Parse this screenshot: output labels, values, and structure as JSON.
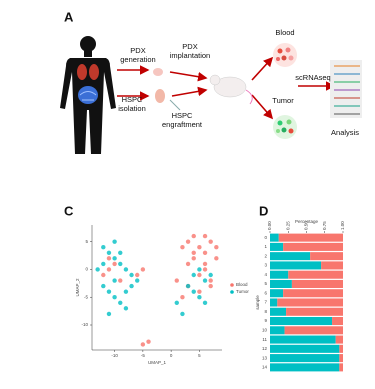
{
  "panel_a": {
    "label": "A",
    "steps": {
      "pdx_generation": [
        "PDX",
        "generation"
      ],
      "pdx_implantation": [
        "PDX",
        "implantation"
      ],
      "hspc_isolation": [
        "HSPC",
        "isolation"
      ],
      "hspc_engraftment": [
        "HSPC",
        "engraftment"
      ],
      "blood": "Blood",
      "tumor": "Tumor",
      "scrnaseq": "scRNAseq",
      "analysis": "Analysis"
    }
  },
  "chart_data": [
    {
      "panel": "C",
      "type": "scatter",
      "xlabel": "UMAP_1",
      "ylabel": "UMAP_2",
      "xlim": [
        -14,
        9
      ],
      "ylim": [
        -14.5,
        8
      ],
      "xticks": [
        -10,
        -5,
        0,
        5
      ],
      "yticks": [
        -10,
        -5,
        0,
        5
      ],
      "legend": "right",
      "series": [
        {
          "name": "Blood",
          "color": "#f8766d",
          "x": [
            3,
            4,
            5,
            6,
            7,
            8,
            5,
            6,
            7,
            4,
            3,
            2,
            6,
            8,
            1,
            -11,
            -12,
            -10,
            -9,
            -11,
            -6,
            -5,
            -4,
            -5,
            6,
            5,
            7,
            4,
            2,
            3
          ],
          "y": [
            5,
            6,
            4,
            3,
            5,
            2,
            -1,
            0,
            -2,
            2,
            -3,
            -5,
            6,
            4,
            -2,
            0,
            -1,
            1,
            -2,
            2,
            -1,
            0,
            -13,
            -13.5,
            1,
            -4,
            -3,
            3,
            4,
            1
          ]
        },
        {
          "name": "Tumor",
          "color": "#00bfc4",
          "x": [
            -12,
            -11,
            -10,
            -9,
            -8,
            -7,
            -12,
            -11,
            -10,
            -9,
            -8,
            -11,
            -10,
            -13,
            -6,
            4,
            5,
            6,
            3,
            7,
            4,
            -9,
            -10,
            -12,
            -8,
            -7,
            5,
            6,
            2,
            1
          ],
          "y": [
            4,
            3,
            2,
            1,
            0,
            -1,
            -3,
            -4,
            -5,
            -6,
            -7,
            -8,
            -2,
            0,
            -2,
            -1,
            0,
            -2,
            -3,
            -1,
            -4,
            3,
            5,
            1,
            -4,
            -3,
            -5,
            -6,
            -8,
            -6
          ]
        }
      ]
    },
    {
      "panel": "D",
      "type": "stacked-bar",
      "orientation": "horizontal",
      "xlabel": "Percentage",
      "ylabel": "sample",
      "xlim": [
        0,
        1
      ],
      "xticks": [
        {
          "value": 0,
          "label": "0.00"
        },
        {
          "value": 0.25,
          "label": "0.25"
        },
        {
          "value": 0.5,
          "label": "0.50"
        },
        {
          "value": 0.75,
          "label": "0.75"
        },
        {
          "value": 1,
          "label": "1.00"
        }
      ],
      "categories": [
        "0",
        "1",
        "2",
        "3",
        "4",
        "5",
        "6",
        "7",
        "8",
        "9",
        "10",
        "11",
        "12",
        "13",
        "14"
      ],
      "series": [
        {
          "name": "Tumor",
          "color": "#00bfc4",
          "values": [
            0.12,
            0.18,
            0.55,
            0.7,
            0.25,
            0.3,
            0.18,
            0.1,
            0.22,
            0.85,
            0.2,
            0.9,
            0.95,
            0.95,
            0.95
          ]
        },
        {
          "name": "Blood",
          "color": "#f8766d",
          "values": [
            0.88,
            0.82,
            0.45,
            0.3,
            0.75,
            0.7,
            0.82,
            0.9,
            0.78,
            0.15,
            0.8,
            0.1,
            0.05,
            0.05,
            0.05
          ]
        }
      ]
    }
  ]
}
